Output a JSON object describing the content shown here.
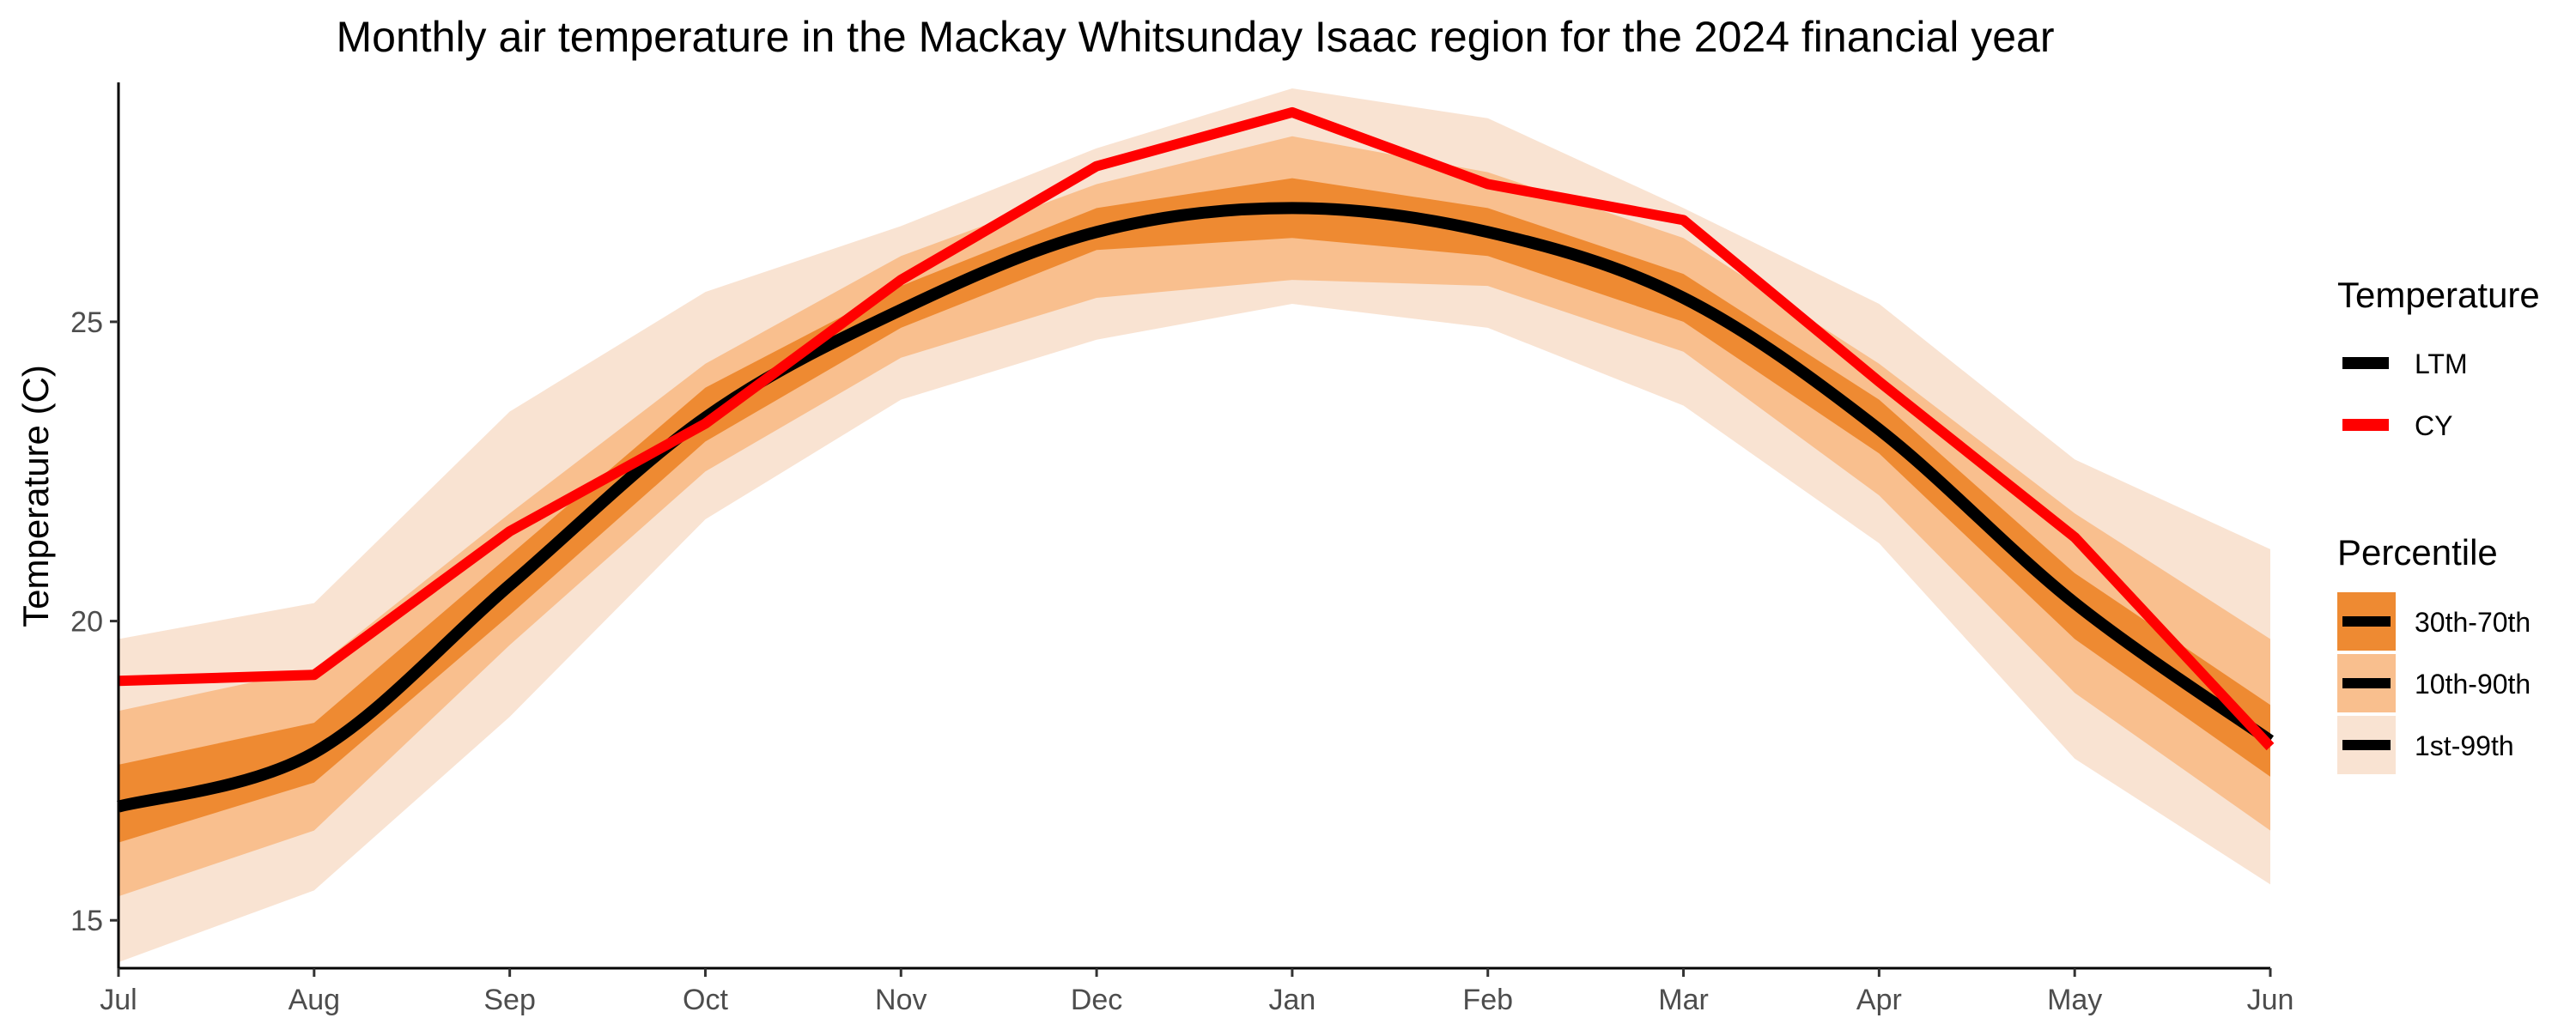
{
  "chart_data": {
    "type": "line",
    "title": "Monthly air temperature in the Mackay Whitsunday Isaac region for the 2024 financial year",
    "xlabel": "",
    "ylabel": "Temperature (C)",
    "categories": [
      "Jul",
      "Aug",
      "Sep",
      "Oct",
      "Nov",
      "Dec",
      "Jan",
      "Feb",
      "Mar",
      "Apr",
      "May",
      "Jun"
    ],
    "ylim": [
      14.2,
      29.0
    ],
    "yticks": [
      15,
      20,
      25
    ],
    "grid": false,
    "series": [
      {
        "name": "LTM",
        "color": "#000000",
        "values": [
          16.9,
          17.8,
          20.6,
          23.4,
          25.2,
          26.5,
          26.9,
          26.5,
          25.4,
          23.2,
          20.3,
          18.0
        ]
      },
      {
        "name": "CY",
        "color": "#ff0000",
        "values": [
          19.0,
          19.1,
          21.5,
          23.3,
          25.7,
          27.6,
          28.5,
          27.3,
          26.7,
          24.0,
          21.4,
          17.9
        ]
      }
    ],
    "bands": [
      {
        "name": "1st-99th",
        "color": "#f9e3d2",
        "lower": [
          14.3,
          15.5,
          18.4,
          21.7,
          23.7,
          24.7,
          25.3,
          24.9,
          23.6,
          21.3,
          17.7,
          15.6
        ],
        "upper": [
          19.7,
          20.3,
          23.5,
          25.5,
          26.6,
          27.9,
          28.9,
          28.4,
          26.9,
          25.3,
          22.7,
          21.2
        ]
      },
      {
        "name": "10th-90th",
        "color": "#f9bf8e",
        "lower": [
          15.4,
          16.5,
          19.6,
          22.5,
          24.4,
          25.4,
          25.7,
          25.6,
          24.5,
          22.1,
          18.8,
          16.5
        ],
        "upper": [
          18.5,
          19.2,
          21.8,
          24.3,
          26.1,
          27.3,
          28.1,
          27.5,
          26.4,
          24.3,
          21.8,
          19.7
        ]
      },
      {
        "name": "30th-70th",
        "color": "#ee8a32",
        "lower": [
          16.3,
          17.3,
          20.1,
          23.0,
          24.9,
          26.2,
          26.4,
          26.1,
          25.0,
          22.8,
          19.7,
          17.4
        ],
        "upper": [
          17.6,
          18.3,
          21.1,
          23.9,
          25.6,
          26.9,
          27.4,
          26.9,
          25.8,
          23.7,
          20.8,
          18.6
        ]
      }
    ],
    "legend": {
      "placement": "right",
      "temperature_title": "Temperature",
      "percentile_title": "Percentile"
    }
  }
}
